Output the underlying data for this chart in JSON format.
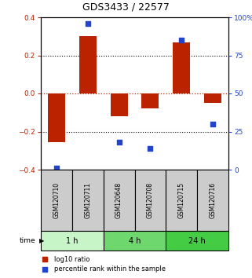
{
  "title": "GDS3433 / 22577",
  "samples": [
    "GSM120710",
    "GSM120711",
    "GSM120648",
    "GSM120708",
    "GSM120715",
    "GSM120716"
  ],
  "log10_ratio": [
    -0.255,
    0.3,
    -0.12,
    -0.08,
    0.27,
    -0.05
  ],
  "percentile_rank": [
    1.0,
    96.0,
    18.0,
    14.0,
    85.0,
    30.0
  ],
  "time_groups": [
    {
      "label": "1 h",
      "start": 0,
      "end": 2,
      "color": "#c8f5c8"
    },
    {
      "label": "4 h",
      "start": 2,
      "end": 4,
      "color": "#6ed86e"
    },
    {
      "label": "24 h",
      "start": 4,
      "end": 6,
      "color": "#44cc44"
    }
  ],
  "bar_color": "#bb2200",
  "dot_color": "#2244cc",
  "ylim_left": [
    -0.4,
    0.4
  ],
  "ylim_right": [
    0,
    100
  ],
  "yticks_left": [
    -0.4,
    -0.2,
    0.0,
    0.2,
    0.4
  ],
  "yticks_right": [
    0,
    25,
    50,
    75,
    100
  ],
  "ytick_labels_right": [
    "0",
    "25",
    "50",
    "75",
    "100%"
  ],
  "hline_dotted": [
    -0.2,
    0.2
  ],
  "bar_width": 0.55,
  "dot_size": 20,
  "sample_box_color": "#cccccc",
  "fig_width": 3.21,
  "fig_height": 3.54,
  "dpi": 100
}
